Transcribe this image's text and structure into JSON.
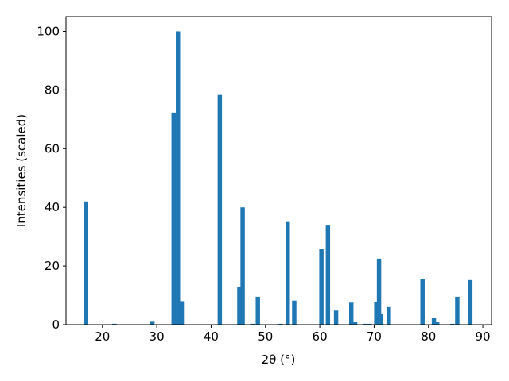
{
  "chart_data": {
    "type": "bar",
    "xlabel": "2θ (°)",
    "ylabel": "Intensities (scaled)",
    "x": [
      17.0,
      22.2,
      29.2,
      33.1,
      33.9,
      34.6,
      41.6,
      45.2,
      45.8,
      47.6,
      48.6,
      52.8,
      54.1,
      55.3,
      60.3,
      61.5,
      63.0,
      65.8,
      66.5,
      68.3,
      69.2,
      70.4,
      70.9,
      71.3,
      72.7,
      78.9,
      81.0,
      81.6,
      84.4,
      85.3,
      87.7
    ],
    "values": [
      42,
      0.3,
      1,
      72.3,
      100,
      8,
      78.3,
      13,
      40,
      0.3,
      9.5,
      0.3,
      35,
      8.2,
      25.7,
      33.8,
      4.8,
      7.5,
      0.8,
      0.3,
      0.3,
      7.8,
      22.5,
      3.8,
      6,
      15.5,
      2.2,
      0.8,
      0.3,
      9.5,
      15.2
    ],
    "color": "#1f77b4",
    "xlim": [
      13.3,
      91.6
    ],
    "xticks": [
      20,
      30,
      40,
      50,
      60,
      70,
      80,
      90
    ],
    "ylim": [
      0,
      105
    ],
    "yticks": [
      0,
      20,
      40,
      60,
      80,
      100
    ]
  }
}
